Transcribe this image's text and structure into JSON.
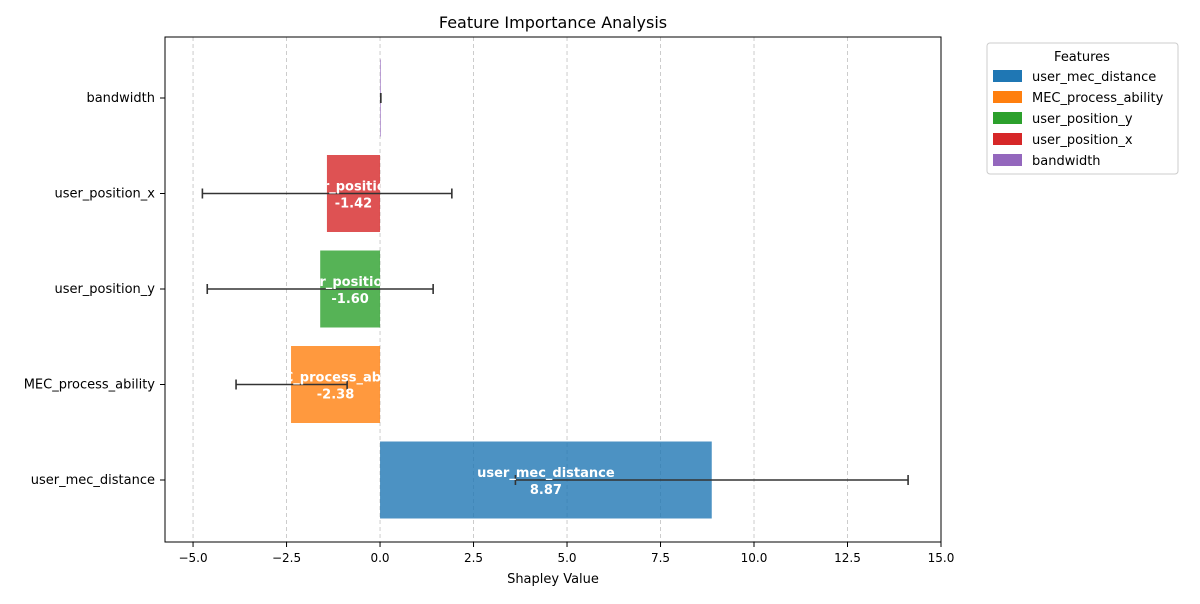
{
  "chart_data": {
    "type": "bar",
    "orientation": "horizontal",
    "title": "Feature Importance Analysis",
    "xlabel": "Shapley Value",
    "ylabel": "",
    "xlim": [
      -5.75,
      15.0
    ],
    "xticks": [
      -5.0,
      -2.5,
      0.0,
      2.5,
      5.0,
      7.5,
      10.0,
      12.5,
      15.0
    ],
    "xtick_labels": [
      "−5.0",
      "−2.5",
      "0.0",
      "2.5",
      "5.0",
      "7.5",
      "10.0",
      "12.5",
      "15.0"
    ],
    "grid": "vertical dashed",
    "categories": [
      "user_mec_distance",
      "MEC_process_ability",
      "user_position_y",
      "user_position_x",
      "bandwidth"
    ],
    "values": [
      8.87,
      -2.38,
      -1.6,
      -1.42,
      0.02
    ],
    "value_labels": [
      "8.87",
      "-2.38",
      "-1.60",
      "-1.42",
      ""
    ],
    "error_low": [
      3.62,
      -3.85,
      -4.62,
      -4.75,
      0.02
    ],
    "error_high": [
      14.12,
      -0.88,
      1.42,
      1.92,
      0.02
    ],
    "colors": [
      "#1f77b4",
      "#ff7f0e",
      "#2ca02c",
      "#d62728",
      "#9467bd"
    ],
    "legend": {
      "title": "Features",
      "placement": "outside upper right",
      "entries": [
        "user_mec_distance",
        "MEC_process_ability",
        "user_position_y",
        "user_position_x",
        "bandwidth"
      ]
    }
  }
}
